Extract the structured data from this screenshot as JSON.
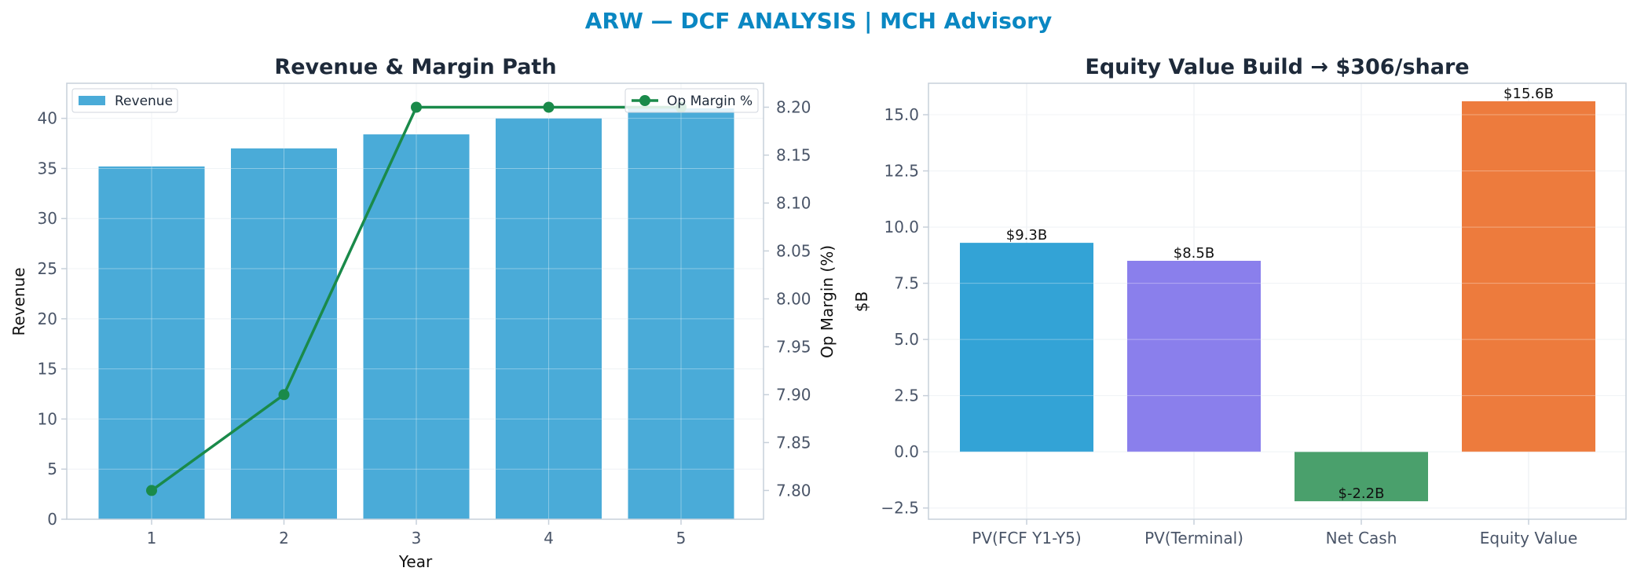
{
  "figure": {
    "title": "ARW — DCF ANALYSIS | MCH Advisory",
    "title_color": "#0a87c2"
  },
  "chart_data": [
    {
      "type": "bar",
      "title": "Revenue & Margin Path",
      "xlabel": "Year",
      "ylabel": "Revenue",
      "y2label": "Op Margin (%)",
      "categories": [
        1,
        2,
        3,
        4,
        5
      ],
      "ylim": [
        0,
        43.5
      ],
      "y2lim": [
        7.77,
        8.225
      ],
      "yticks": [
        0,
        5,
        10,
        15,
        20,
        25,
        30,
        35,
        40
      ],
      "y2ticks": [
        "7.80",
        "7.85",
        "7.90",
        "7.95",
        "8.00",
        "8.05",
        "8.10",
        "8.15",
        "8.20"
      ],
      "grid": true,
      "series": [
        {
          "name": "Revenue",
          "kind": "bar",
          "axis": "left",
          "color": "#4aabd8",
          "values": [
            35.2,
            37.0,
            38.4,
            40.0,
            41.0
          ]
        },
        {
          "name": "Op Margin %",
          "kind": "line",
          "axis": "right",
          "color": "#1a8a4a",
          "values": [
            7.8,
            7.9,
            8.2,
            8.2,
            8.2
          ]
        }
      ],
      "legends": {
        "left": "top-left",
        "right": "top-right"
      }
    },
    {
      "type": "bar",
      "title": "Equity Value Build → $306/share",
      "xlabel": "",
      "ylabel": "$B",
      "categories": [
        "PV(FCF Y1-Y5)",
        "PV(Terminal)",
        "Net Cash",
        "Equity Value"
      ],
      "values": [
        9.3,
        8.5,
        -2.2,
        15.6
      ],
      "data_labels": [
        "$9.3B",
        "$8.5B",
        "$-2.2B",
        "$15.6B"
      ],
      "colors": [
        "#33a3d6",
        "#8a7fec",
        "#4aa06c",
        "#ed7b3d"
      ],
      "ylim": [
        -3.0,
        16.4
      ],
      "yticks": [
        "−2.5",
        "0.0",
        "2.5",
        "5.0",
        "7.5",
        "10.0",
        "12.5",
        "15.0"
      ],
      "grid": true
    }
  ]
}
